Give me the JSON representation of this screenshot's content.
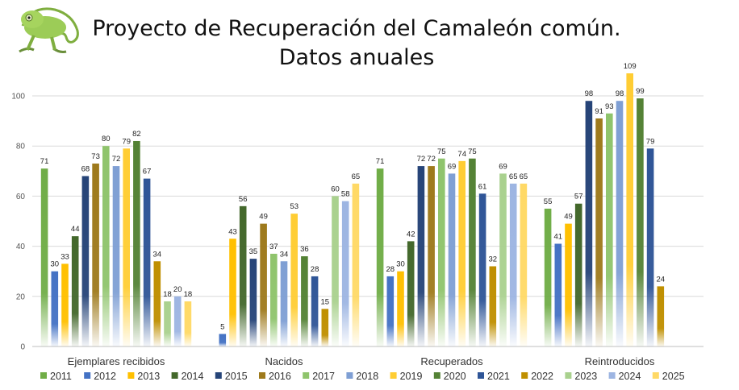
{
  "title": {
    "line1": "Proyecto de Recuperación del Camaleón común.",
    "line2": "Datos anuales"
  },
  "logo": {
    "icon": "chameleon-icon"
  },
  "chart_data": {
    "type": "bar",
    "categories": [
      "Ejemplares recibidos",
      "Nacidos",
      "Recuperados",
      "Reintroducidos"
    ],
    "ylim": [
      0,
      100
    ],
    "yticks": [
      0,
      20,
      40,
      60,
      80,
      100
    ],
    "grid": true,
    "legend_position": "bottom",
    "series": [
      {
        "name": "2011",
        "color": "#70AD47",
        "values": [
          71,
          null,
          71,
          55
        ]
      },
      {
        "name": "2012",
        "color": "#4472C4",
        "values": [
          30,
          5,
          28,
          41
        ]
      },
      {
        "name": "2013",
        "color": "#FFC000",
        "values": [
          33,
          43,
          30,
          49
        ]
      },
      {
        "name": "2014",
        "color": "#43682B",
        "values": [
          44,
          56,
          42,
          57
        ]
      },
      {
        "name": "2015",
        "color": "#264478",
        "values": [
          68,
          35,
          72,
          98
        ]
      },
      {
        "name": "2016",
        "color": "#9E7A1C",
        "values": [
          73,
          49,
          72,
          91
        ]
      },
      {
        "name": "2017",
        "color": "#8FC46C",
        "values": [
          80,
          37,
          75,
          93
        ]
      },
      {
        "name": "2018",
        "color": "#7F9FD4",
        "values": [
          72,
          34,
          69,
          98
        ]
      },
      {
        "name": "2019",
        "color": "#FFCD33",
        "values": [
          79,
          53,
          74,
          109
        ]
      },
      {
        "name": "2020",
        "color": "#548235",
        "values": [
          82,
          36,
          75,
          99
        ]
      },
      {
        "name": "2021",
        "color": "#2F5597",
        "values": [
          67,
          28,
          61,
          79
        ]
      },
      {
        "name": "2022",
        "color": "#BF8F00",
        "values": [
          34,
          15,
          32,
          24
        ]
      },
      {
        "name": "2023",
        "color": "#A9D18E",
        "values": [
          18,
          60,
          69,
          null
        ]
      },
      {
        "name": "2024",
        "color": "#9DB5E2",
        "values": [
          20,
          58,
          65,
          null
        ]
      },
      {
        "name": "2025",
        "color": "#FFD966",
        "values": [
          18,
          65,
          65,
          null
        ]
      }
    ]
  }
}
